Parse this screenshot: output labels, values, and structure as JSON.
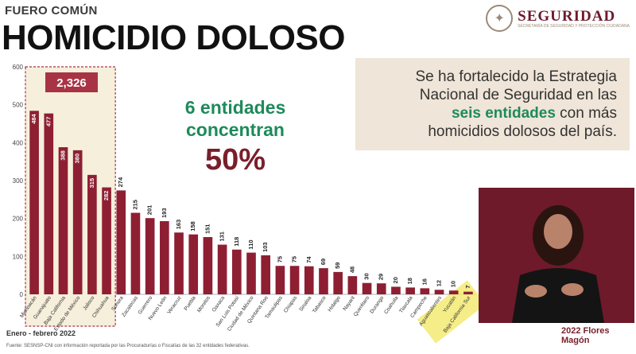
{
  "header": {
    "overline": "FUERO COMÚN",
    "title": "HOMICIDIO DOLOSO",
    "logo_text": "SEGURIDAD",
    "logo_subtitle": "SECRETARÍA DE SEGURIDAD Y PROTECCIÓN CIUDADANA"
  },
  "callout": {
    "part1": "Se ha fortalecido la Estrategia Nacional de Seguridad en las ",
    "highlight": "seis entidades",
    "part2": " con más homicidios dolosos del país."
  },
  "stat": {
    "line1": "6 entidades",
    "line2": "concentran",
    "percent": "50%"
  },
  "footnotes": {
    "date": "Enero - febrero 2022",
    "source": "Fuente: SESNSP-CNI con información reportada por las Procuradurías o Fiscalías de las 32 entidades federativas."
  },
  "badge": {
    "text": "2022 Flores Magón"
  },
  "colors": {
    "bar": "#8e1f33",
    "highlight_box": "#a83345",
    "callout_bg": "#efe5d8",
    "accent_green": "#1e8a5a",
    "accent_red": "#7a1e2c",
    "footer_yellow": "#f3e96a"
  },
  "chart_data": {
    "type": "bar",
    "title": "HOMICIDIO DOLOSO",
    "ylim": [
      0,
      600
    ],
    "yticks": [
      0,
      100,
      200,
      300,
      400,
      500,
      600
    ],
    "grid": false,
    "highlight_total": "2,326",
    "highlight_first_n": 6,
    "categories": [
      "Michoacán",
      "Guanajuato",
      "Baja California",
      "Estado de México",
      "Jalisco",
      "Chihuahua",
      "Sonora",
      "Zacatecas",
      "Guerrero",
      "Nuevo León",
      "Veracruz",
      "Puebla",
      "Morelos",
      "Oaxaca",
      "San Luis Potosí",
      "Ciudad de México",
      "Quintana Roo",
      "Tamaulipas",
      "Chiapas",
      "Sinaloa",
      "Tabasco",
      "Hidalgo",
      "Nayarit",
      "Querétaro",
      "Durango",
      "Coahuila",
      "Tlaxcala",
      "Campeche",
      "Aguascalientes",
      "Yucatán",
      "Baja California Sur"
    ],
    "values": [
      484,
      477,
      388,
      380,
      315,
      282,
      274,
      215,
      201,
      193,
      163,
      158,
      151,
      131,
      118,
      110,
      103,
      75,
      75,
      74,
      69,
      59,
      48,
      30,
      29,
      20,
      18,
      16,
      12,
      10,
      7
    ]
  }
}
